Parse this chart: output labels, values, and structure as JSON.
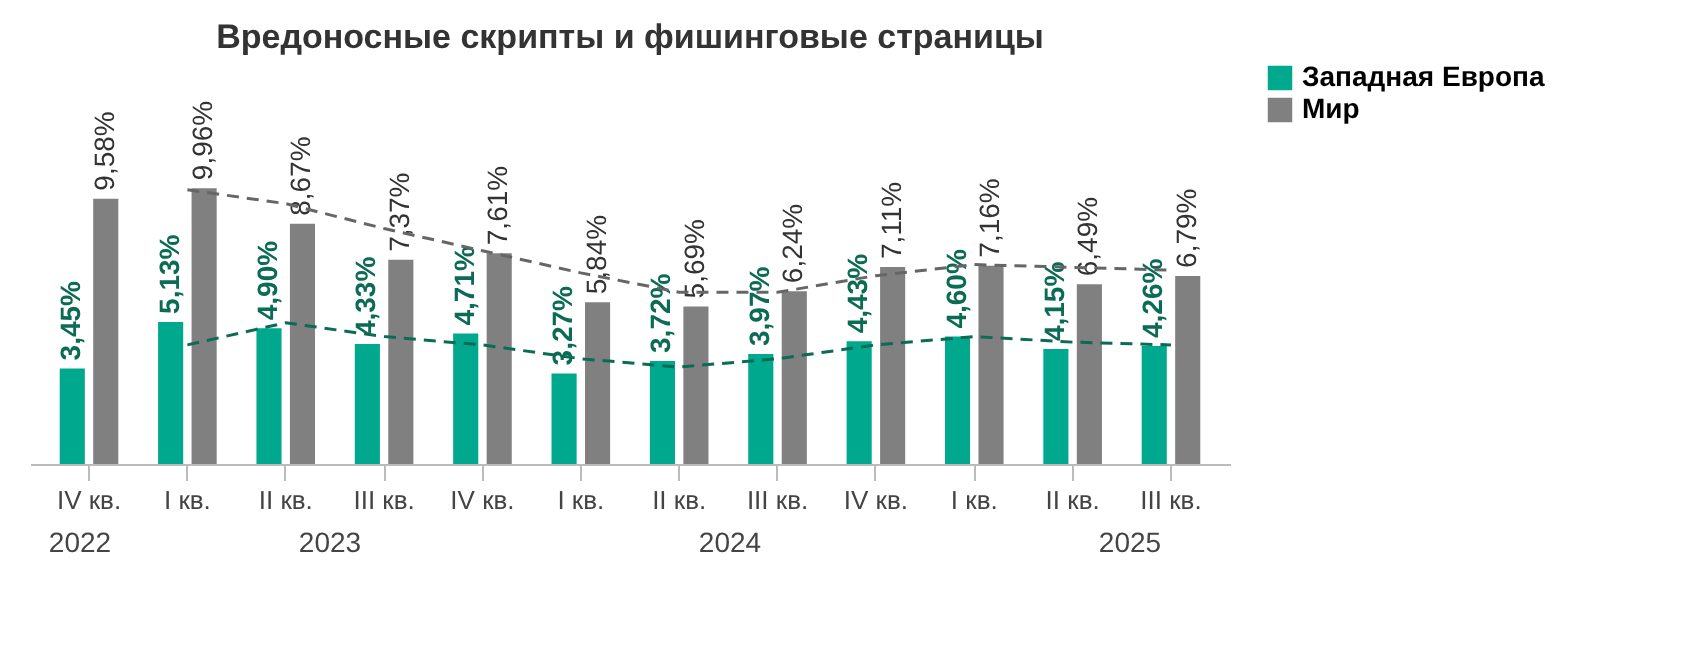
{
  "chart_data": {
    "type": "bar",
    "title": "Вредоносные скрипты и фишинговые страницы",
    "categories": [
      "IV кв.",
      "I кв.",
      "II кв.",
      "III кв.",
      "IV кв.",
      "I кв.",
      "II кв.",
      "III кв.",
      "IV кв.",
      "I кв.",
      "II кв.",
      "III кв."
    ],
    "annotations": [
      "2022",
      "2023",
      "2024",
      "2025"
    ],
    "series": [
      {
        "name": "Западная Европа",
        "color": "#00a88e",
        "values": [
          3.45,
          5.13,
          4.9,
          4.33,
          4.71,
          3.27,
          3.72,
          3.97,
          4.43,
          4.6,
          4.15,
          4.26
        ],
        "value_labels": [
          "3,45%",
          "5,13%",
          "4,90%",
          "4,33%",
          "4,71%",
          "3,27%",
          "3,72%",
          "3,97%",
          "4,43%",
          "4,60%",
          "4,15%",
          "4,26%"
        ]
      },
      {
        "name": "Мир",
        "color": "#808080",
        "values": [
          9.58,
          9.96,
          8.67,
          7.37,
          7.61,
          5.84,
          5.69,
          6.24,
          7.11,
          7.16,
          6.49,
          6.79
        ],
        "value_labels": [
          "9,58%",
          "9,96%",
          "8,67%",
          "7,37%",
          "7,61%",
          "5,84%",
          "5,69%",
          "6,24%",
          "7,11%",
          "7,16%",
          "6,49%",
          "6,79%"
        ]
      },
      {
        "type": "line",
        "line_style": "dashed",
        "color": "#0b6b55",
        "values": [
          null,
          4.3,
          5.1,
          4.6,
          4.3,
          3.8,
          3.5,
          3.8,
          4.3,
          4.6,
          4.4,
          4.3
        ]
      },
      {
        "type": "line",
        "line_style": "dashed",
        "color": "#666666",
        "values": [
          null,
          9.9,
          9.4,
          8.5,
          7.7,
          6.9,
          6.2,
          6.2,
          6.8,
          7.2,
          7.1,
          7.0
        ]
      }
    ],
    "tick_labels": "x",
    "grid": false,
    "legend": "right"
  }
}
